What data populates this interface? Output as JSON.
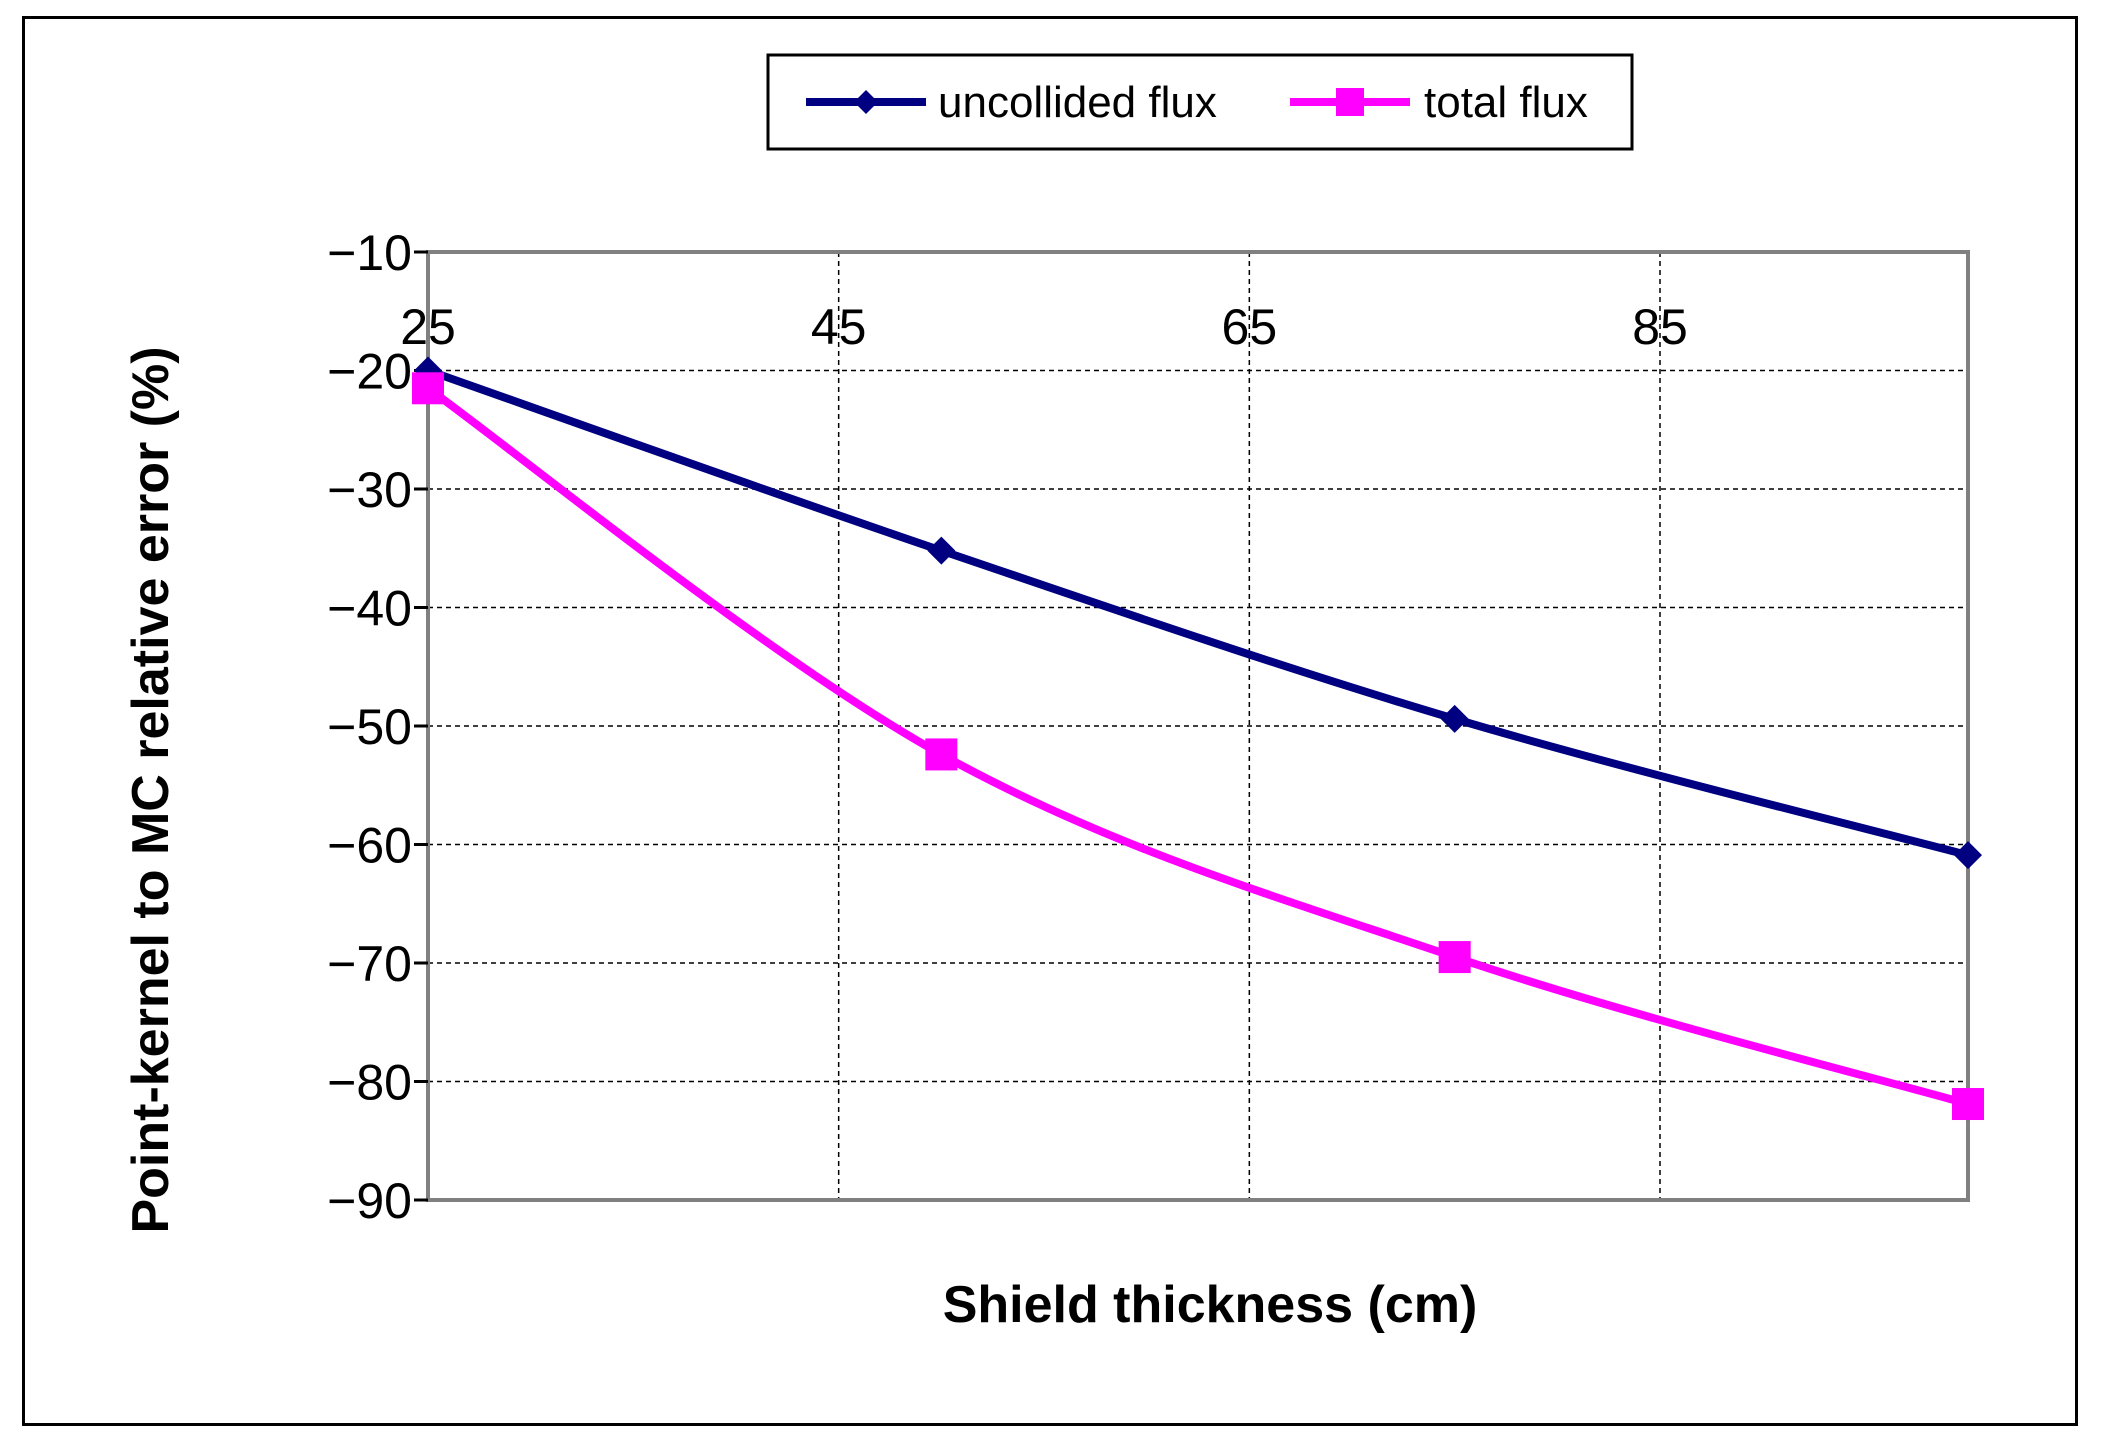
{
  "chart_data": {
    "type": "line",
    "xlabel": "Shield thickness (cm)",
    "ylabel": "Point-kernel to MC relative error (%)",
    "xlim": [
      25,
      100
    ],
    "ylim": [
      -90,
      -10
    ],
    "x_ticks": [
      "25",
      "45",
      "65",
      "85"
    ],
    "y_ticks": [
      "−10",
      "−20",
      "−30",
      "−40",
      "−50",
      "−60",
      "−70",
      "−80",
      "−90"
    ],
    "grid": true,
    "legend_position": "top",
    "series": [
      {
        "name": "uncollided flux",
        "marker": "diamond",
        "color": "#000080",
        "x": [
          25,
          50,
          75,
          100
        ],
        "y": [
          -20,
          -35.2,
          -49.4,
          -60.9
        ]
      },
      {
        "name": "total flux",
        "marker": "square",
        "color": "#FF00FF",
        "x": [
          25,
          50,
          75,
          100
        ],
        "y": [
          -21.5,
          -52.4,
          -69.5,
          -81.9
        ]
      }
    ]
  }
}
